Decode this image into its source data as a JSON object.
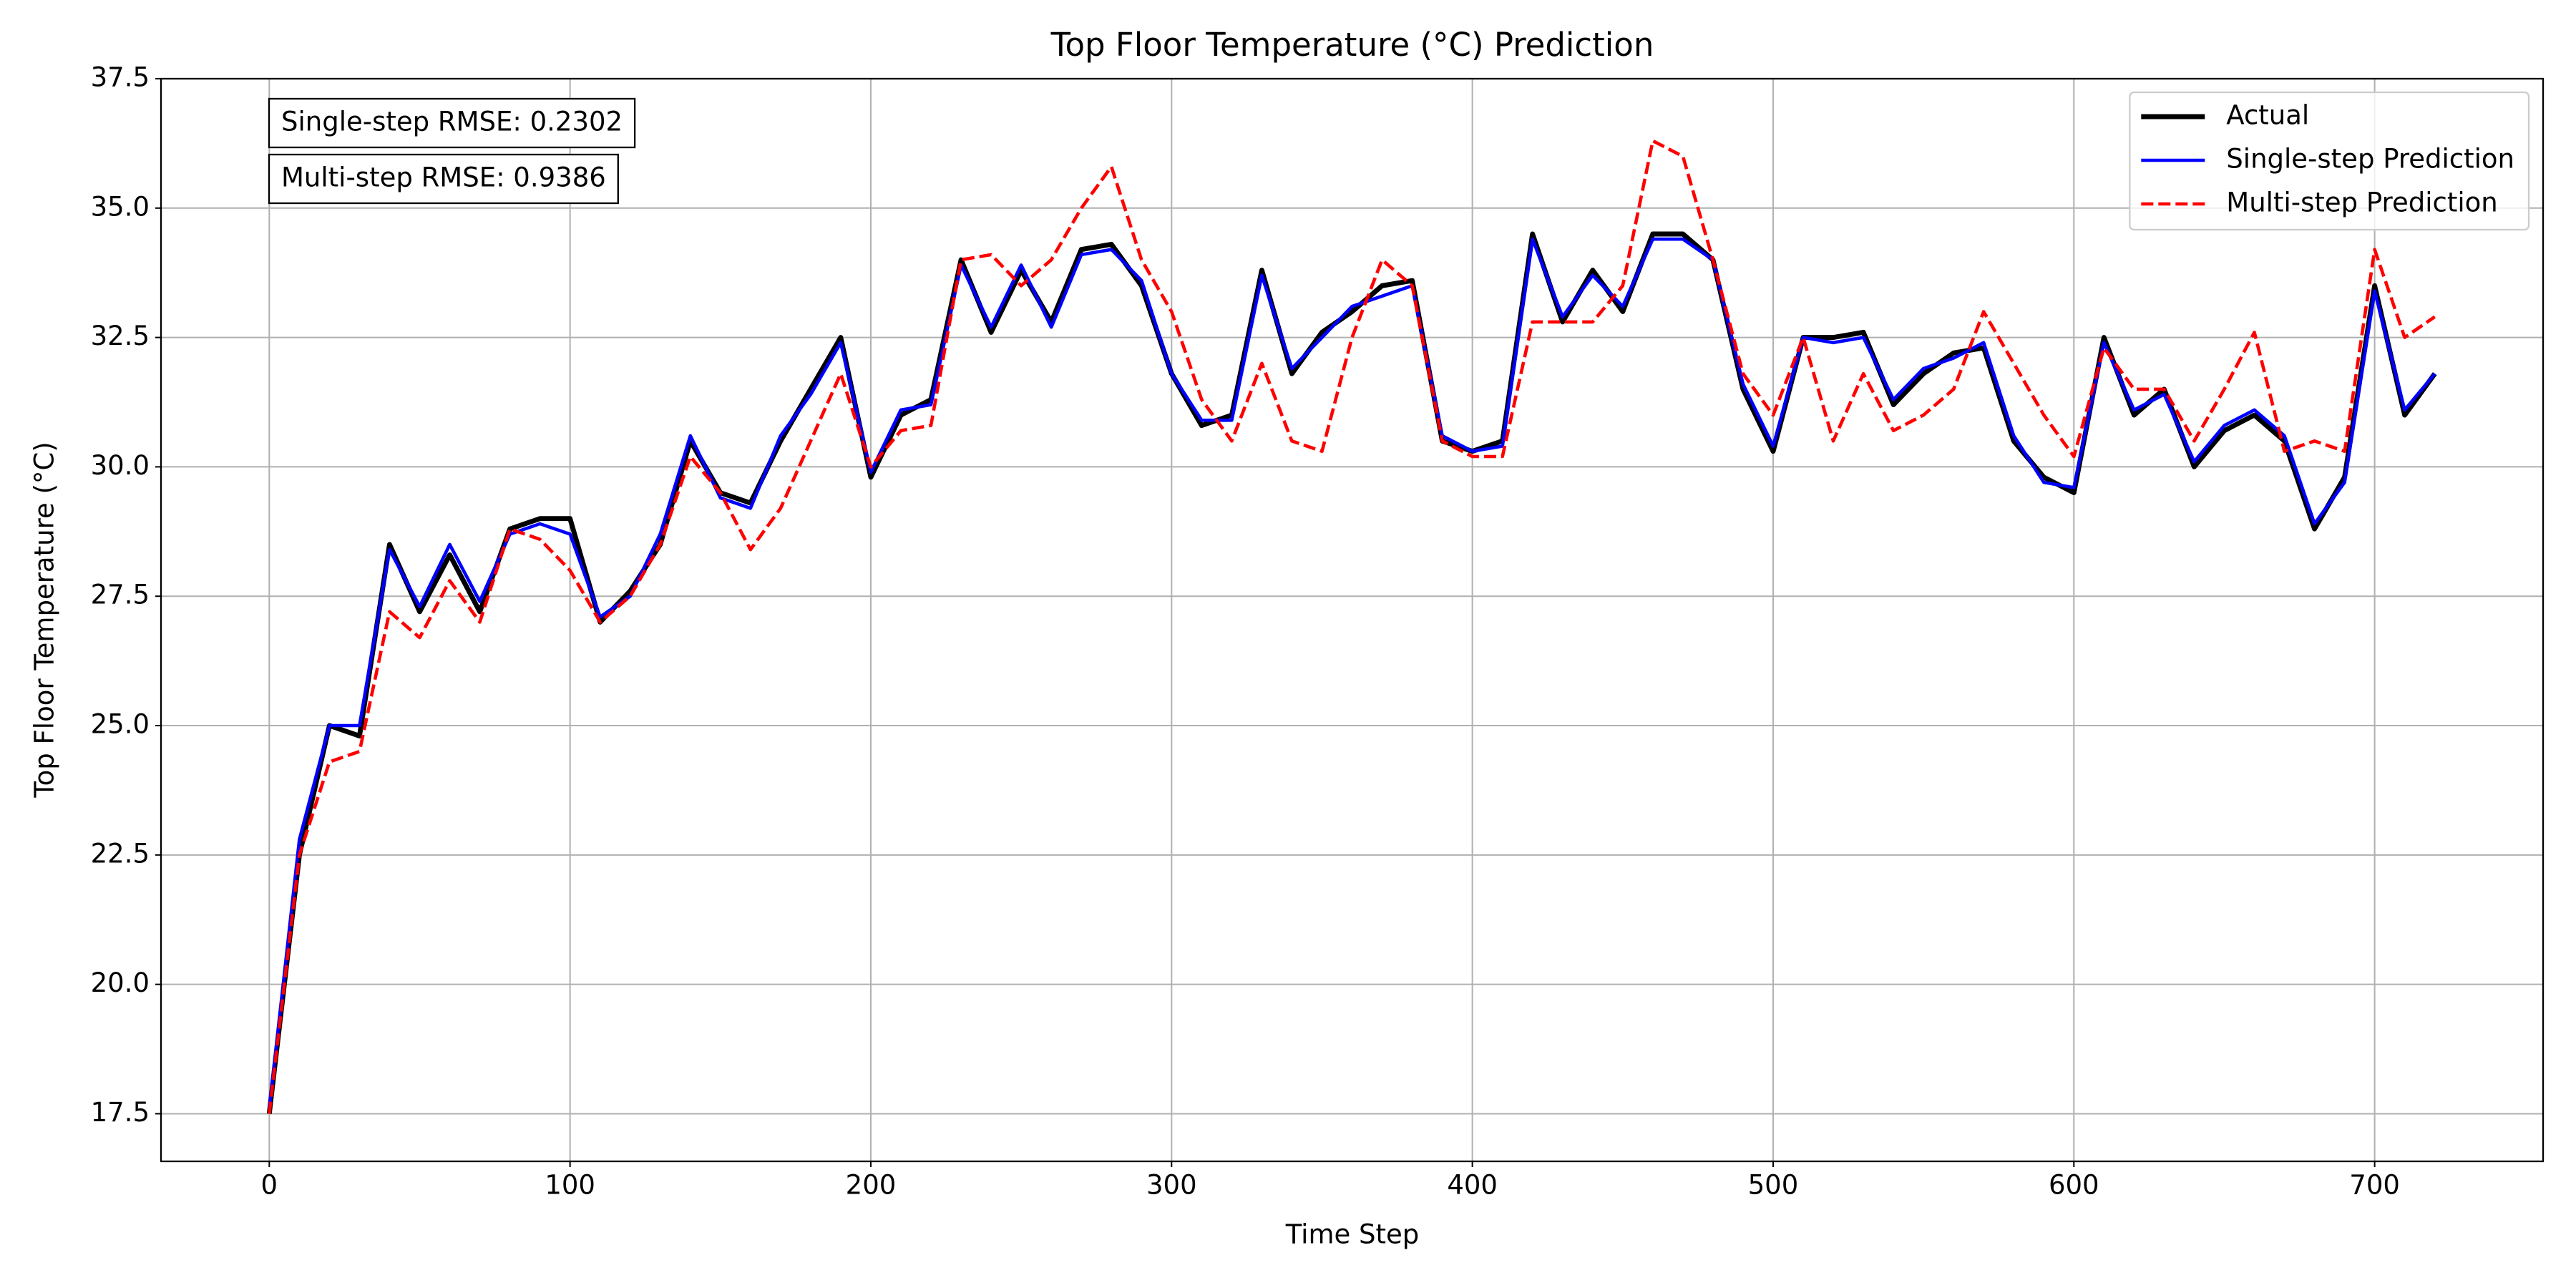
{
  "chart_data": {
    "type": "line",
    "title": "Top Floor Temperature (°C) Prediction",
    "xlabel": "Time Step",
    "ylabel": "Top Floor Temperature (°C)",
    "annotations": [
      "Single-step RMSE: 0.2302",
      "Multi-step RMSE: 0.9386"
    ],
    "x": [
      0,
      10,
      20,
      30,
      40,
      50,
      60,
      70,
      80,
      90,
      100,
      110,
      120,
      130,
      140,
      150,
      160,
      170,
      180,
      190,
      200,
      210,
      220,
      230,
      240,
      250,
      260,
      270,
      280,
      290,
      300,
      310,
      320,
      330,
      340,
      350,
      360,
      370,
      380,
      390,
      400,
      410,
      420,
      430,
      440,
      450,
      460,
      470,
      480,
      490,
      500,
      510,
      520,
      530,
      540,
      550,
      560,
      570,
      580,
      590,
      600,
      610,
      620,
      630,
      640,
      650,
      660,
      670,
      680,
      690,
      700,
      710,
      720
    ],
    "series": [
      {
        "name": "Actual",
        "color": "#000000",
        "dash": false,
        "width": 3,
        "values": [
          17.5,
          22.5,
          25.0,
          24.8,
          28.5,
          27.2,
          28.3,
          27.2,
          28.8,
          29.0,
          29.0,
          27.0,
          27.6,
          28.5,
          30.5,
          29.5,
          29.3,
          30.5,
          31.5,
          32.5,
          29.8,
          31.0,
          31.3,
          34.0,
          32.6,
          33.8,
          32.8,
          34.2,
          34.3,
          33.5,
          31.8,
          30.8,
          31.0,
          33.8,
          31.8,
          32.6,
          33.0,
          33.5,
          33.6,
          30.5,
          30.3,
          30.5,
          34.5,
          32.8,
          33.8,
          33.0,
          34.5,
          34.5,
          34.0,
          31.5,
          30.3,
          32.5,
          32.5,
          32.6,
          31.2,
          31.8,
          32.2,
          32.3,
          30.5,
          29.8,
          29.5,
          32.5,
          31.0,
          31.5,
          30.0,
          30.7,
          31.0,
          30.5,
          28.8,
          29.8,
          33.5,
          31.0,
          31.8
        ]
      },
      {
        "name": "Single-step Prediction",
        "color": "#0000ff",
        "dash": false,
        "width": 2,
        "values": [
          17.6,
          22.8,
          25.0,
          25.0,
          28.4,
          27.3,
          28.5,
          27.4,
          28.7,
          28.9,
          28.7,
          27.1,
          27.5,
          28.7,
          30.6,
          29.4,
          29.2,
          30.6,
          31.4,
          32.4,
          29.9,
          31.1,
          31.2,
          33.9,
          32.7,
          33.9,
          32.7,
          34.1,
          34.2,
          33.6,
          31.8,
          30.9,
          30.9,
          33.7,
          31.9,
          32.5,
          33.1,
          33.3,
          33.5,
          30.6,
          30.3,
          30.4,
          34.4,
          32.9,
          33.7,
          33.1,
          34.4,
          34.4,
          34.0,
          31.6,
          30.4,
          32.5,
          32.4,
          32.5,
          31.3,
          31.9,
          32.1,
          32.4,
          30.6,
          29.7,
          29.6,
          32.4,
          31.1,
          31.4,
          30.1,
          30.8,
          31.1,
          30.6,
          28.9,
          29.7,
          33.4,
          31.1,
          31.8
        ]
      },
      {
        "name": "Multi-step Prediction",
        "color": "#ff0000",
        "dash": true,
        "width": 2,
        "values": [
          17.5,
          22.5,
          24.3,
          24.5,
          27.2,
          26.7,
          27.8,
          27.0,
          28.8,
          28.6,
          28.0,
          27.0,
          27.5,
          28.5,
          30.2,
          29.5,
          28.4,
          29.2,
          30.5,
          31.8,
          30.0,
          30.7,
          30.8,
          34.0,
          34.1,
          33.5,
          34.0,
          35.0,
          35.8,
          34.0,
          33.0,
          31.3,
          30.5,
          32.0,
          30.5,
          30.3,
          32.5,
          34.0,
          33.5,
          30.5,
          30.2,
          30.2,
          32.8,
          32.8,
          32.8,
          33.5,
          36.3,
          36.0,
          34.0,
          31.8,
          31.0,
          32.5,
          30.5,
          31.8,
          30.7,
          31.0,
          31.5,
          33.0,
          32.0,
          31.0,
          30.2,
          32.3,
          31.5,
          31.5,
          30.5,
          31.5,
          32.6,
          30.3,
          30.5,
          30.3,
          34.2,
          32.5,
          32.9
        ]
      }
    ],
    "xlim": [
      -36,
      756
    ],
    "ylim": [
      16.58,
      37.5
    ],
    "xticks": [
      0,
      100,
      200,
      300,
      400,
      500,
      600,
      700
    ],
    "yticks": [
      17.5,
      {
        "value": 20,
        "label": "20.0"
      },
      22.5,
      {
        "value": 25,
        "label": "25.0"
      },
      27.5,
      {
        "value": 30,
        "label": "30.0"
      },
      32.5,
      {
        "value": 35,
        "label": "35.0"
      },
      37.5
    ],
    "grid": true,
    "legend": "upper right"
  }
}
